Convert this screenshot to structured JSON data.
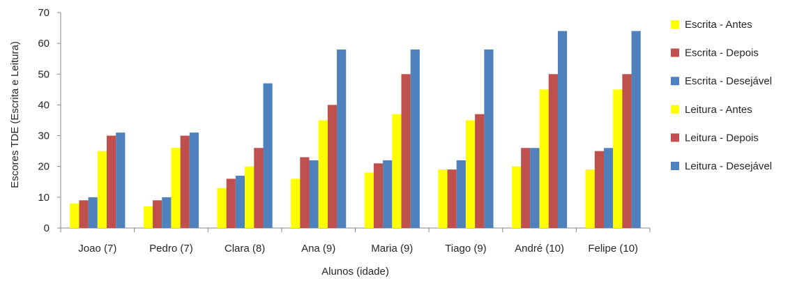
{
  "chart_data": {
    "type": "bar",
    "title": "",
    "xlabel": "Alunos (idade)",
    "ylabel": "Escores  TDE (Escrita e Leitura)",
    "ylim": [
      0,
      70
    ],
    "yticks": [
      0,
      10,
      20,
      30,
      40,
      50,
      60,
      70
    ],
    "grid": false,
    "legend_position": "right",
    "categories": [
      "Joao (7)",
      "Pedro (7)",
      "Clara (8)",
      "Ana (9)",
      "Maria (9)",
      "Tiago (9)",
      "André (10)",
      "Felipe (10)"
    ],
    "series": [
      {
        "name": "Escrita - Antes",
        "color": "#FFFF00",
        "values": [
          8,
          7,
          13,
          16,
          18,
          19,
          20,
          19
        ]
      },
      {
        "name": "Escrita - Depois",
        "color": "#C0504D",
        "values": [
          9,
          9,
          16,
          23,
          21,
          19,
          26,
          25
        ]
      },
      {
        "name": "Escrita - Desejável",
        "color": "#4F81BD",
        "values": [
          10,
          10,
          17,
          22,
          22,
          22,
          26,
          26
        ]
      },
      {
        "name": "Leitura - Antes",
        "color": "#FFFF00",
        "values": [
          25,
          26,
          20,
          35,
          37,
          35,
          45,
          45
        ]
      },
      {
        "name": "Leitura - Depois",
        "color": "#C0504D",
        "values": [
          30,
          30,
          26,
          40,
          50,
          37,
          50,
          50
        ]
      },
      {
        "name": "Leitura - Desejável",
        "color": "#4F81BD",
        "values": [
          31,
          31,
          47,
          58,
          58,
          58,
          64,
          64
        ]
      }
    ]
  }
}
